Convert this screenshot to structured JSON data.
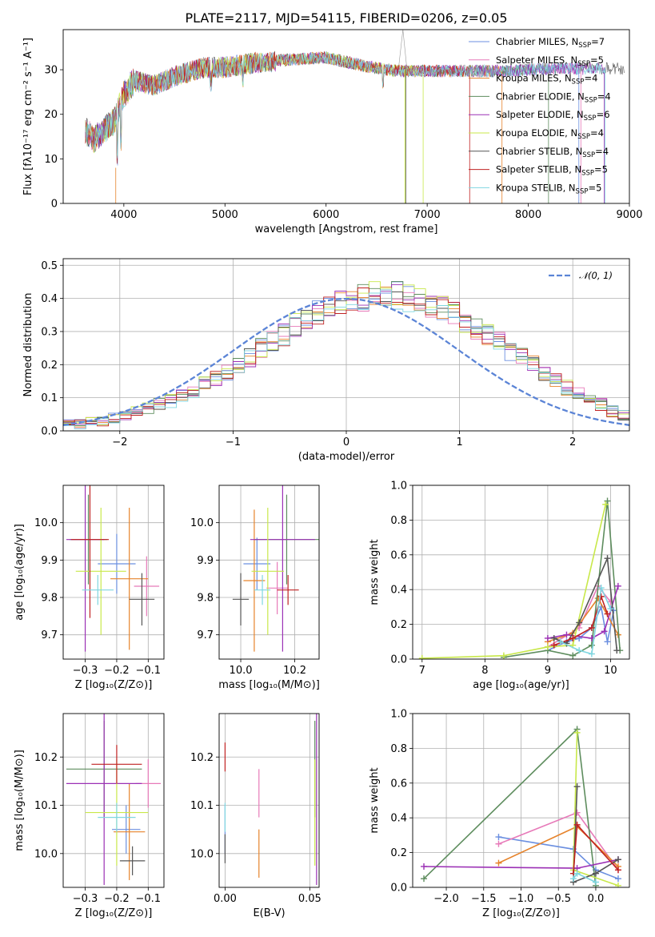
{
  "colors": {
    "Chabrier MILES": "#6b8fe0",
    "Salpeter MILES": "#e77ab9",
    "Kroupa MILES": "#e6832b",
    "Chabrier ELODIE": "#5e8d5e",
    "Salpeter ELODIE": "#9b30b5",
    "Kroupa ELODIE": "#c8e84a",
    "Chabrier STELIB": "#555555",
    "Salpeter STELIB": "#c02222",
    "Kroupa STELIB": "#7fd6e0",
    "normal": "#5b84d6"
  },
  "chart_data": [
    {
      "id": "spectrum",
      "type": "line",
      "title": "PLATE=2117, MJD=54115, FIBERID=0206, z=0.05",
      "xlabel": "wavelength [Angstrom, rest frame]",
      "ylabel": "Flux [fλ10⁻¹⁷ erg cm⁻² s⁻¹ A⁻¹]",
      "xlim": [
        3400,
        9000
      ],
      "ylim": [
        0,
        39
      ],
      "xticks": [
        "4000",
        "5000",
        "6000",
        "7000",
        "8000",
        "9000"
      ],
      "yticks": [
        "0",
        "10",
        "20",
        "30"
      ],
      "grid": false,
      "legend_position": "top-right",
      "legend": [
        {
          "label": "Chabrier MILES, N",
          "sub": "SSP",
          "suffix": "=7"
        },
        {
          "label": "Salpeter MILES, N",
          "sub": "SSP",
          "suffix": "=5"
        },
        {
          "label": "Kroupa MILES, N",
          "sub": "SSP",
          "suffix": "=4"
        },
        {
          "label": "Chabrier ELODIE, N",
          "sub": "SSP",
          "suffix": "=4"
        },
        {
          "label": "Salpeter ELODIE, N",
          "sub": "SSP",
          "suffix": "=6"
        },
        {
          "label": "Kroupa ELODIE, N",
          "sub": "SSP",
          "suffix": "=4"
        },
        {
          "label": "Chabrier STELIB, N",
          "sub": "SSP",
          "suffix": "=4"
        },
        {
          "label": "Salpeter STELIB, N",
          "sub": "SSP",
          "suffix": "=5"
        },
        {
          "label": "Kroupa STELIB, N",
          "sub": "SSP",
          "suffix": "=5"
        }
      ],
      "continuum": [
        [
          3620,
          17
        ],
        [
          3700,
          15
        ],
        [
          3800,
          17
        ],
        [
          3900,
          19
        ],
        [
          4000,
          25
        ],
        [
          4100,
          28
        ],
        [
          4300,
          27
        ],
        [
          4500,
          29
        ],
        [
          4800,
          31
        ],
        [
          5000,
          31
        ],
        [
          5300,
          32
        ],
        [
          5600,
          32.5
        ],
        [
          6000,
          33
        ],
        [
          6400,
          31
        ],
        [
          6700,
          30
        ],
        [
          7000,
          30
        ],
        [
          7400,
          30
        ],
        [
          7800,
          30
        ],
        [
          8200,
          30.5
        ],
        [
          8600,
          30.5
        ],
        [
          9000,
          30.5
        ]
      ],
      "spectrum_end_by_model": [
        8500,
        8520,
        7740,
        8200,
        8750,
        6960,
        8950,
        7420,
        8760
      ]
    },
    {
      "id": "residuals",
      "type": "step",
      "xlabel": "(data-model)/error",
      "ylabel": "Normed distribution",
      "xlim": [
        -2.5,
        2.5
      ],
      "ylim": [
        0,
        0.52
      ],
      "xticks": [
        "−2",
        "−1",
        "0",
        "1",
        "2"
      ],
      "yticks": [
        "0.0",
        "0.1",
        "0.2",
        "0.3",
        "0.4",
        "0.5"
      ],
      "grid": true,
      "legend_position": "top-right",
      "legend_label": "𝒩(0, 1)",
      "bin_width": 0.1,
      "bin_start": -2.5,
      "bins_Chabrier_MILES": [
        0.02,
        0.02,
        0.03,
        0.03,
        0.04,
        0.05,
        0.06,
        0.07,
        0.08,
        0.09,
        0.11,
        0.12,
        0.14,
        0.16,
        0.18,
        0.2,
        0.22,
        0.25,
        0.27,
        0.29,
        0.32,
        0.34,
        0.36,
        0.37,
        0.39,
        0.39,
        0.4,
        0.41,
        0.4,
        0.41,
        0.4,
        0.39,
        0.38,
        0.37,
        0.35,
        0.33,
        0.31,
        0.29,
        0.27,
        0.24,
        0.22,
        0.2,
        0.17,
        0.15,
        0.13,
        0.11,
        0.09,
        0.08,
        0.06,
        0.05
      ]
    },
    {
      "id": "age-vs-Z",
      "type": "errorbar",
      "xlabel": "Z [log₁₀(Z/Z⊙)]",
      "ylabel": "age  [log₁₀(age/yr)]",
      "xlim": [
        -0.37,
        -0.05
      ],
      "ylim": [
        9.635,
        10.1
      ],
      "xticks": [
        "−0.3",
        "−0.2",
        "−0.1"
      ],
      "yticks": [
        "9.7",
        "9.8",
        "9.9",
        "10.0"
      ],
      "grid": true,
      "points": [
        {
          "model": "Chabrier MILES",
          "x": -0.2,
          "xerr": 0.06,
          "y": 9.89,
          "yerr": 0.08
        },
        {
          "model": "Salpeter MILES",
          "x": -0.105,
          "xerr": 0.04,
          "y": 9.83,
          "yerr": 0.08
        },
        {
          "model": "Kroupa MILES",
          "x": -0.16,
          "xerr": 0.06,
          "y": 9.85,
          "yerr": 0.19
        },
        {
          "model": "Chabrier ELODIE",
          "x": -0.29,
          "xerr": 0.06,
          "y": 9.955,
          "yerr": 0.12
        },
        {
          "model": "Salpeter ELODIE",
          "x": -0.3,
          "xerr": 0.06,
          "y": 9.955,
          "yerr": 0.3
        },
        {
          "model": "Kroupa ELODIE",
          "x": -0.25,
          "xerr": 0.08,
          "y": 9.87,
          "yerr": 0.17
        },
        {
          "model": "Chabrier STELIB",
          "x": -0.12,
          "xerr": 0.04,
          "y": 9.795,
          "yerr": 0.07
        },
        {
          "model": "Salpeter STELIB",
          "x": -0.285,
          "xerr": 0.06,
          "y": 9.955,
          "yerr": 0.21
        },
        {
          "model": "Kroupa STELIB",
          "x": -0.26,
          "xerr": 0.05,
          "y": 9.82,
          "yerr": 0.04
        }
      ]
    },
    {
      "id": "age-vs-mass",
      "type": "errorbar",
      "xlabel": "mass [log₁₀(M/M⊙)]",
      "ylabel": "",
      "xlim": [
        9.92,
        10.29
      ],
      "ylim": [
        9.635,
        10.1
      ],
      "xticks": [
        "10.0",
        "10.2"
      ],
      "yticks": [
        "9.7",
        "9.8",
        "9.9",
        "10.0"
      ],
      "grid": true,
      "points": [
        {
          "model": "Chabrier MILES",
          "x": 10.06,
          "xerr": 0.05,
          "y": 9.89,
          "yerr": 0.07
        },
        {
          "model": "Salpeter MILES",
          "x": 10.135,
          "xerr": 0.04,
          "y": 9.825,
          "yerr": 0.07
        },
        {
          "model": "Kroupa MILES",
          "x": 10.05,
          "xerr": 0.04,
          "y": 9.845,
          "yerr": 0.19
        },
        {
          "model": "Chabrier ELODIE",
          "x": 10.17,
          "xerr": 0.12,
          "y": 9.955,
          "yerr": 0.12
        },
        {
          "model": "Salpeter ELODIE",
          "x": 10.155,
          "xerr": 0.12,
          "y": 9.955,
          "yerr": 0.3
        },
        {
          "model": "Kroupa ELODIE",
          "x": 10.1,
          "xerr": 0.06,
          "y": 9.87,
          "yerr": 0.17
        },
        {
          "model": "Chabrier STELIB",
          "x": 10.0,
          "xerr": 0.03,
          "y": 9.795,
          "yerr": 0.07
        },
        {
          "model": "Salpeter STELIB",
          "x": 10.175,
          "xerr": 0.04,
          "y": 9.82,
          "yerr": 0.04
        },
        {
          "model": "Kroupa STELIB",
          "x": 10.08,
          "xerr": 0.03,
          "y": 9.82,
          "yerr": 0.04
        }
      ]
    },
    {
      "id": "mass-weight-vs-age",
      "type": "line",
      "xlabel": "age  [log₁₀(age/yr)]",
      "ylabel": "mass weight",
      "xlim": [
        6.85,
        10.3
      ],
      "ylim": [
        0,
        1.0
      ],
      "xticks": [
        "7",
        "8",
        "9",
        "10"
      ],
      "yticks": [
        "0.0",
        "0.2",
        "0.4",
        "0.6",
        "0.8",
        "1.0"
      ],
      "grid": true,
      "series": [
        {
          "model": "Chabrier MILES",
          "x": [
            9.0,
            9.3,
            9.5,
            9.7,
            9.85,
            9.95,
            10.05
          ],
          "y": [
            0.05,
            0.1,
            0.12,
            0.18,
            0.3,
            0.1,
            0.28
          ]
        },
        {
          "model": "Salpeter MILES",
          "x": [
            9.0,
            9.5,
            9.8,
            10.0
          ],
          "y": [
            0.07,
            0.18,
            0.42,
            0.33
          ]
        },
        {
          "model": "Kroupa MILES",
          "x": [
            9.0,
            9.4,
            9.8,
            10.12
          ],
          "y": [
            0.1,
            0.15,
            0.35,
            0.14
          ]
        },
        {
          "model": "Chabrier ELODIE",
          "x": [
            8.3,
            9.0,
            9.4,
            9.7,
            9.95,
            10.15
          ],
          "y": [
            0.01,
            0.05,
            0.02,
            0.08,
            0.91,
            0.05
          ]
        },
        {
          "model": "Salpeter ELODIE",
          "x": [
            9.0,
            9.3,
            9.7,
            9.9,
            10.12
          ],
          "y": [
            0.12,
            0.14,
            0.12,
            0.16,
            0.42
          ]
        },
        {
          "model": "Kroupa ELODIE",
          "x": [
            7.0,
            8.3,
            9.0,
            9.4,
            9.92
          ],
          "y": [
            0.005,
            0.02,
            0.07,
            0.08,
            0.89
          ]
        },
        {
          "model": "Chabrier STELIB",
          "x": [
            9.1,
            9.3,
            9.5,
            9.95,
            10.1
          ],
          "y": [
            0.12,
            0.09,
            0.21,
            0.58,
            0.05
          ]
        },
        {
          "model": "Salpeter STELIB",
          "x": [
            9.1,
            9.4,
            9.7,
            9.85,
            9.95
          ],
          "y": [
            0.08,
            0.12,
            0.18,
            0.36,
            0.26
          ]
        },
        {
          "model": "Kroupa STELIB",
          "x": [
            9.2,
            9.5,
            9.7,
            9.85,
            10.0
          ],
          "y": [
            0.1,
            0.05,
            0.03,
            0.41,
            0.29
          ]
        }
      ]
    },
    {
      "id": "mass-vs-Z",
      "type": "errorbar",
      "xlabel": "Z [log₁₀(Z/Z⊙)]",
      "ylabel": "mass [log₁₀(M/M⊙)]",
      "xlim": [
        -0.37,
        -0.05
      ],
      "ylim": [
        9.93,
        10.29
      ],
      "xticks": [
        "−0.3",
        "−0.2",
        "−0.1"
      ],
      "yticks": [
        "10.0",
        "10.1",
        "10.2"
      ],
      "grid": true,
      "points": [
        {
          "model": "Chabrier MILES",
          "x": -0.17,
          "xerr": 0.045,
          "y": 10.05,
          "yerr": 0.05
        },
        {
          "model": "Salpeter MILES",
          "x": -0.1,
          "xerr": 0.04,
          "y": 10.145,
          "yerr": 0.05
        },
        {
          "model": "Kroupa MILES",
          "x": -0.16,
          "xerr": 0.05,
          "y": 10.045,
          "yerr": 0.1
        },
        {
          "model": "Chabrier ELODIE",
          "x": -0.24,
          "xerr": 0.12,
          "y": 10.175,
          "yerr": 0.1
        },
        {
          "model": "Salpeter ELODIE",
          "x": -0.24,
          "xerr": 0.12,
          "y": 10.145,
          "yerr": 0.21
        },
        {
          "model": "Kroupa ELODIE",
          "x": -0.2,
          "xerr": 0.1,
          "y": 10.085,
          "yerr": 0.11
        },
        {
          "model": "Chabrier STELIB",
          "x": -0.15,
          "xerr": 0.04,
          "y": 9.985,
          "yerr": 0.03
        },
        {
          "model": "Salpeter STELIB",
          "x": -0.2,
          "xerr": 0.08,
          "y": 10.185,
          "yerr": 0.04
        },
        {
          "model": "Kroupa STELIB",
          "x": -0.2,
          "xerr": 0.06,
          "y": 10.075,
          "yerr": 0.03
        }
      ]
    },
    {
      "id": "mass-vs-EBV",
      "type": "errorbar",
      "xlabel": "E(B-V)",
      "ylabel": "",
      "xlim": [
        -0.0035,
        0.0555
      ],
      "ylim": [
        9.93,
        10.29
      ],
      "xticks": [
        "0.00",
        "0.05"
      ],
      "yticks": [
        "10.0",
        "10.1",
        "10.2"
      ],
      "grid": true,
      "points": [
        {
          "model": "Chabrier MILES",
          "x": 0.0,
          "xerr": 0,
          "y": 10.05,
          "yerr": 0.05
        },
        {
          "model": "Salpeter MILES",
          "x": 0.02,
          "xerr": 0,
          "y": 10.125,
          "yerr": 0.05
        },
        {
          "model": "Kroupa MILES",
          "x": 0.02,
          "xerr": 0,
          "y": 10.0,
          "yerr": 0.05
        },
        {
          "model": "Chabrier ELODIE",
          "x": 0.053,
          "xerr": 0,
          "y": 10.175,
          "yerr": 0.1
        },
        {
          "model": "Salpeter ELODIE",
          "x": 0.054,
          "xerr": 0,
          "y": 10.125,
          "yerr": 0.19
        },
        {
          "model": "Kroupa ELODIE",
          "x": 0.053,
          "xerr": 0,
          "y": 10.085,
          "yerr": 0.11
        },
        {
          "model": "Chabrier STELIB",
          "x": 0.0,
          "xerr": 0,
          "y": 10.01,
          "yerr": 0.03
        },
        {
          "model": "Salpeter STELIB",
          "x": 0.0,
          "xerr": 0,
          "y": 10.2,
          "yerr": 0.03
        },
        {
          "model": "Kroupa STELIB",
          "x": 0.0,
          "xerr": 0,
          "y": 10.075,
          "yerr": 0.03
        }
      ]
    },
    {
      "id": "mass-weight-vs-Z",
      "type": "line",
      "xlabel": "Z [log₁₀(Z/Z⊙)]",
      "ylabel": "mass weight",
      "xlim": [
        -2.45,
        0.45
      ],
      "ylim": [
        0,
        1.0
      ],
      "xticks": [
        "−2.0",
        "−1.5",
        "−1.0",
        "−0.5",
        "0.0"
      ],
      "yticks": [
        "0.0",
        "0.2",
        "0.4",
        "0.6",
        "0.8",
        "1.0"
      ],
      "grid": true,
      "series": [
        {
          "model": "Chabrier MILES",
          "x": [
            -1.3,
            -0.3,
            0.0,
            0.3
          ],
          "y": [
            0.29,
            0.22,
            0.1,
            0.05
          ]
        },
        {
          "model": "Salpeter MILES",
          "x": [
            -1.3,
            -0.25,
            0.3
          ],
          "y": [
            0.25,
            0.43,
            0.1
          ]
        },
        {
          "model": "Kroupa MILES",
          "x": [
            -1.3,
            -0.25,
            0.3
          ],
          "y": [
            0.14,
            0.35,
            0.12
          ]
        },
        {
          "model": "Chabrier ELODIE",
          "x": [
            -2.3,
            -0.25,
            0.0
          ],
          "y": [
            0.05,
            0.91,
            0.01
          ]
        },
        {
          "model": "Salpeter ELODIE",
          "x": [
            -2.3,
            -0.25,
            0.3
          ],
          "y": [
            0.12,
            0.11,
            0.16
          ]
        },
        {
          "model": "Kroupa ELODIE",
          "x": [
            -0.25,
            -0.3,
            0.3
          ],
          "y": [
            0.89,
            0.1,
            0.01
          ]
        },
        {
          "model": "Chabrier STELIB",
          "x": [
            -0.25,
            -0.3,
            0.0,
            0.3
          ],
          "y": [
            0.58,
            0.03,
            0.08,
            0.16
          ]
        },
        {
          "model": "Salpeter STELIB",
          "x": [
            -0.3,
            -0.25,
            0.3
          ],
          "y": [
            0.08,
            0.36,
            0.1
          ]
        },
        {
          "model": "Kroupa STELIB",
          "x": [
            -0.3,
            -0.25,
            0.0
          ],
          "y": [
            0.05,
            0.08,
            0.03
          ]
        }
      ]
    }
  ]
}
